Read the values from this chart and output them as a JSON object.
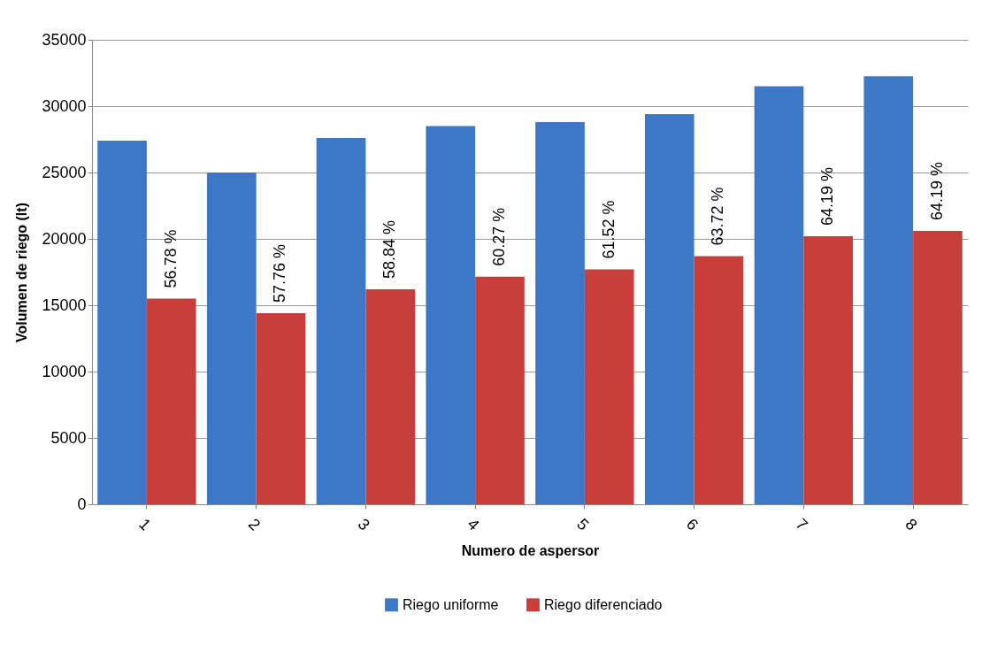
{
  "chart_data": {
    "type": "bar",
    "xlabel": "Numero de aspersor",
    "ylabel": "Volumen de riego (lt)",
    "categories": [
      "1",
      "2",
      "3",
      "4",
      "5",
      "6",
      "7",
      "8"
    ],
    "series": [
      {
        "name": "Riego uniforme",
        "color": "#3d78c6",
        "values": [
          27400,
          25000,
          27600,
          28500,
          28800,
          29400,
          31500,
          32250
        ]
      },
      {
        "name": "Riego diferenciado",
        "color": "#c83e3b",
        "values": [
          15500,
          14400,
          16200,
          17150,
          17700,
          18700,
          20200,
          20600
        ]
      }
    ],
    "annotations": [
      {
        "text": "56.78 %",
        "x": "1",
        "y": 15500
      },
      {
        "text": "57.76 %",
        "x": "2",
        "y": 14400
      },
      {
        "text": "58.84 %",
        "x": "3",
        "y": 16200
      },
      {
        "text": "60.27 %",
        "x": "4",
        "y": 17150
      },
      {
        "text": "61.52 %",
        "x": "5",
        "y": 17700
      },
      {
        "text": "63.72 %",
        "x": "6",
        "y": 18700
      },
      {
        "text": "64.19 %",
        "x": "7",
        "y": 20200
      },
      {
        "text": "64.19 %",
        "x": "8",
        "y": 20600
      }
    ],
    "ylim": [
      0,
      35000
    ],
    "yticks": [
      0,
      5000,
      10000,
      15000,
      20000,
      25000,
      30000,
      35000
    ],
    "grid": "y",
    "legend": "bottom"
  }
}
